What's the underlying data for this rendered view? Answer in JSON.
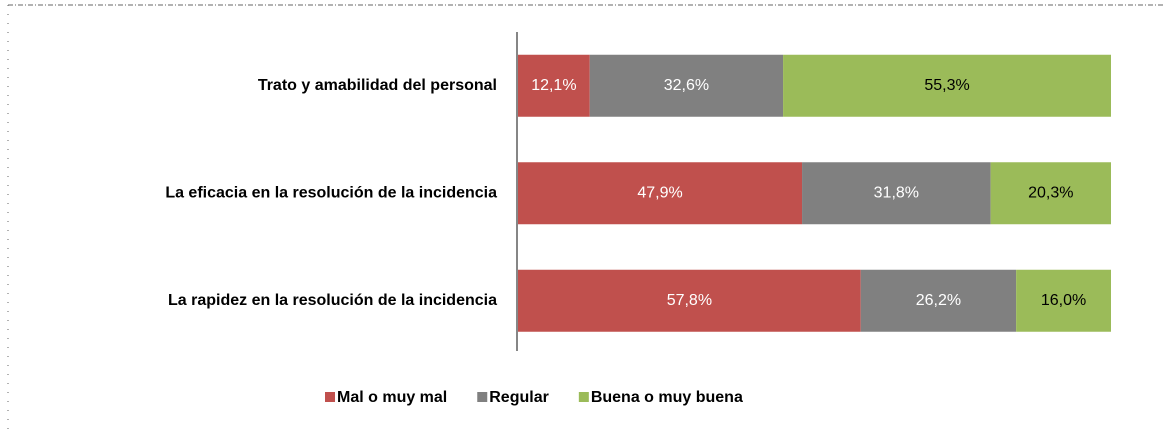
{
  "chart_data": {
    "type": "stacked-bar-horizontal",
    "categories": [
      "Trato y amabilidad del personal",
      "La eficacia en la resolución de la incidencia",
      "La rapidez en la resolución de la incidencia"
    ],
    "series": [
      {
        "name": "Mal o muy mal",
        "color": "#c0504d",
        "values": [
          12.1,
          47.9,
          57.8
        ],
        "value_labels": [
          "12,1%",
          "47,9%",
          "57,8%"
        ]
      },
      {
        "name": "Regular",
        "color": "#808080",
        "values": [
          32.6,
          31.8,
          26.2
        ],
        "value_labels": [
          "32,6%",
          "31,8%",
          "26,2%"
        ]
      },
      {
        "name": "Buena o muy buena",
        "color": "#9bbb59",
        "values": [
          55.3,
          20.3,
          16.0
        ],
        "value_labels": [
          "55,3%",
          "20,3%",
          "16,0%"
        ]
      }
    ],
    "xlim": [
      0,
      100
    ],
    "legend": "bottom"
  }
}
